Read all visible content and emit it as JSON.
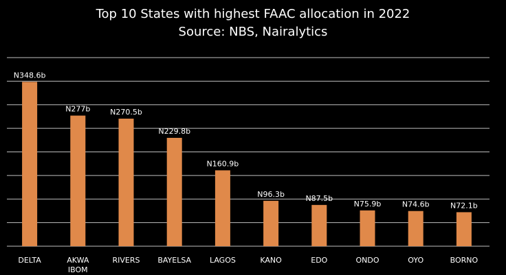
{
  "chart_data": {
    "type": "bar",
    "title": "Top 10 States with highest FAAC allocation in 2022",
    "subtitle": "Source: NBS, Nairalytics",
    "categories": [
      "DELTA",
      "AKWA IBOM",
      "RIVERS",
      "BAYELSA",
      "LAGOS",
      "KANO",
      "EDO",
      "ONDO",
      "OYO",
      "BORNO"
    ],
    "category_lines": [
      [
        "DELTA"
      ],
      [
        "AKWA",
        "IBOM"
      ],
      [
        "RIVERS"
      ],
      [
        "BAYELSA"
      ],
      [
        "LAGOS"
      ],
      [
        "KANO"
      ],
      [
        "EDO"
      ],
      [
        "ONDO"
      ],
      [
        "OYO"
      ],
      [
        "BORNO"
      ]
    ],
    "values": [
      348.6,
      277,
      270.5,
      229.8,
      160.9,
      96.3,
      87.5,
      75.9,
      74.6,
      72.1
    ],
    "data_labels": [
      "N348.6b",
      "N277b",
      "N270.5b",
      "N229.8b",
      "N160.9b",
      "N96.3b",
      "N87.5b",
      "N75.9b",
      "N74.6b",
      "N72.1b"
    ],
    "xlabel": "",
    "ylabel": "",
    "ylim": [
      0,
      400
    ],
    "grid": true,
    "bar_color": "#e0894a",
    "grid_color": "#bfbfbf",
    "background_color": "#000000",
    "text_color": "#ffffff"
  }
}
